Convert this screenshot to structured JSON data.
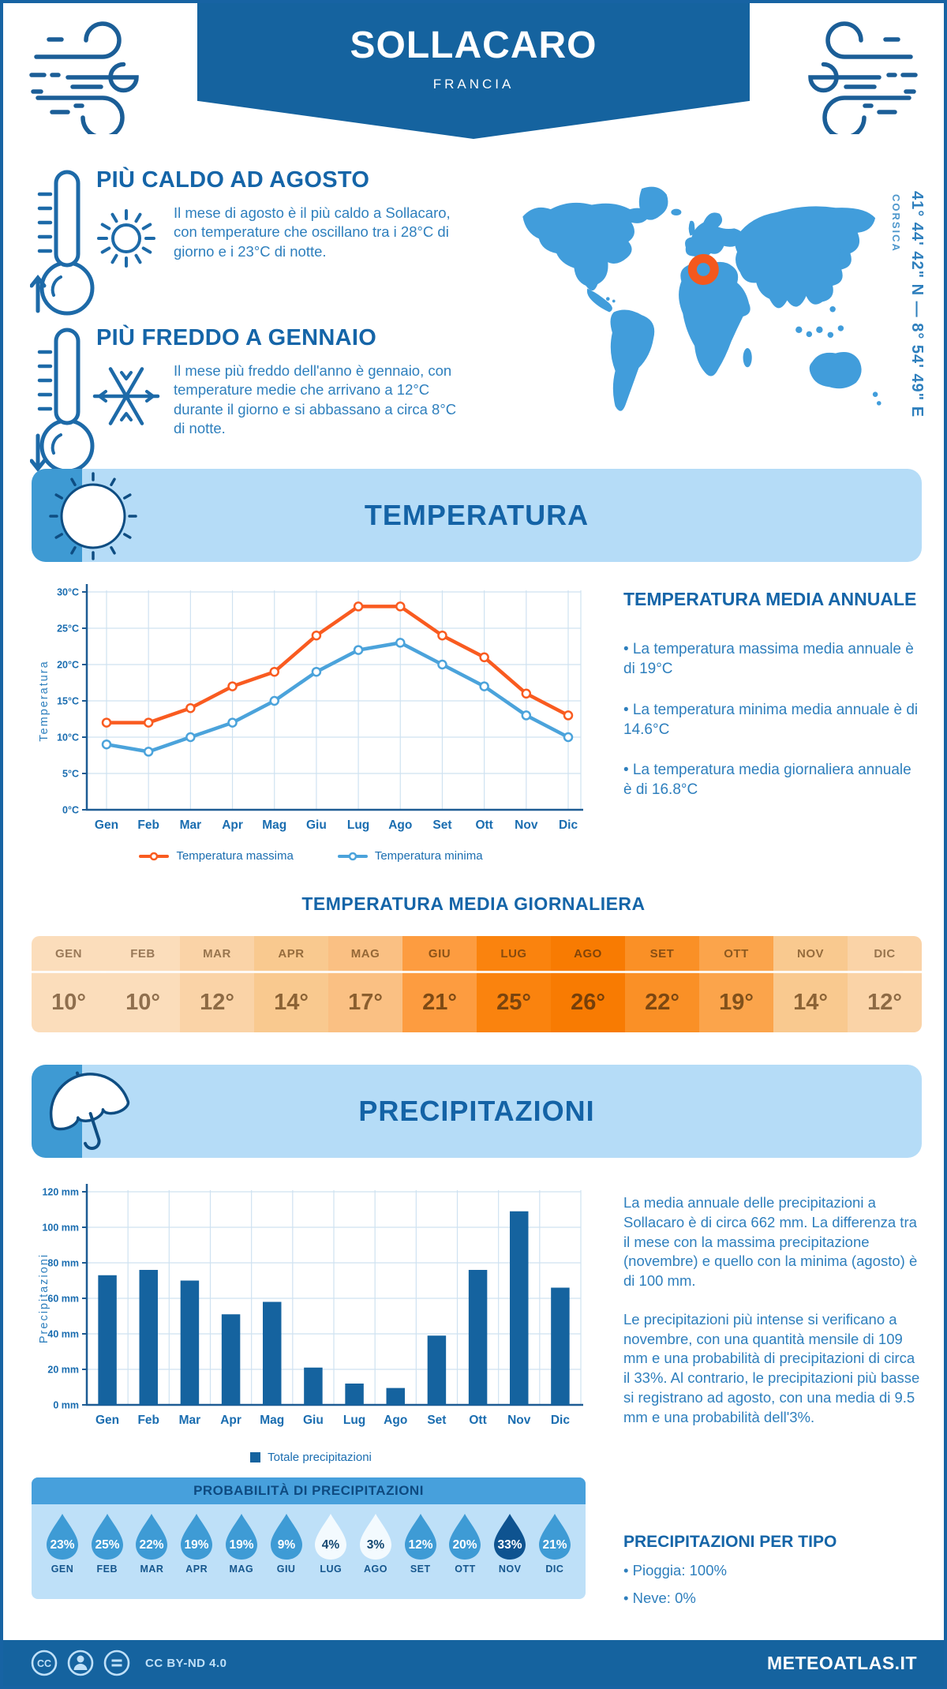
{
  "header": {
    "title": "SOLLACARO",
    "subtitle": "FRANCIA"
  },
  "theme": {
    "brand_blue": "#15639F",
    "light_blue_banner": "#B5DCF7",
    "tab_blue": "#3E9AD3",
    "heading_blue": "#1565A8",
    "body_blue": "#2E7FBD",
    "map_land_blue": "#419DDB",
    "marker_orange": "#F4581D",
    "grid_blue": "#CFE2F1",
    "axis_blue": "#1E5C94"
  },
  "icons": {
    "header_decoration": "wind-icon",
    "hot_block": [
      "thermometer-up-icon",
      "sun-icon"
    ],
    "cold_block": [
      "thermometer-down-icon",
      "snowflake-icon"
    ],
    "temperature_section": "sun-icon",
    "precipitation_section": "umbrella-icon",
    "probability": "raindrop-icon",
    "map_marker": "location-ring-icon",
    "license": [
      "cc-icon",
      "person-icon",
      "nd-equals-icon"
    ]
  },
  "highlights": [
    {
      "title": "PIÙ CALDO AD AGOSTO",
      "text": "Il mese di agosto è il più caldo a Sollacaro, con temperature che oscillano tra i 28°C di giorno e i 23°C di notte."
    },
    {
      "title": "PIÙ FREDDO A GENNAIO",
      "text": "Il mese più freddo dell'anno è gennaio, con temperature medie che arrivano a 12°C durante il giorno e si abbassano a circa 8°C di notte."
    }
  ],
  "map": {
    "region": "CORSICA",
    "coordinates": "41° 44' 42\" N — 8° 54' 49\" E"
  },
  "sections": {
    "temperature_title": "TEMPERATURA",
    "precipitation_title": "PRECIPITAZIONI"
  },
  "chart_data": [
    {
      "type": "line",
      "title": "Temperatura",
      "categories": [
        "Gen",
        "Feb",
        "Mar",
        "Apr",
        "Mag",
        "Giu",
        "Lug",
        "Ago",
        "Set",
        "Ott",
        "Nov",
        "Dic"
      ],
      "series": [
        {
          "name": "Temperatura massima",
          "color": "#F95B20",
          "values": [
            12,
            12,
            14,
            17,
            19,
            24,
            28,
            28,
            24,
            21,
            16,
            13
          ]
        },
        {
          "name": "Temperatura minima",
          "color": "#4BA3DB",
          "values": [
            9,
            8,
            10,
            12,
            15,
            19,
            22,
            23,
            20,
            17,
            13,
            10
          ]
        }
      ],
      "xlabel": "",
      "ylabel": "Temperatura",
      "ylim": [
        0,
        30
      ],
      "ytick_step": 5,
      "ytick_suffix": "°C",
      "grid": true,
      "legend_position": "bottom"
    },
    {
      "type": "bar",
      "title": "Precipitazioni",
      "categories": [
        "Gen",
        "Feb",
        "Mar",
        "Apr",
        "Mag",
        "Giu",
        "Lug",
        "Ago",
        "Set",
        "Ott",
        "Nov",
        "Dic"
      ],
      "series": [
        {
          "name": "Totale precipitazioni",
          "color": "#15639F",
          "values": [
            73,
            76,
            70,
            51,
            58,
            21,
            12,
            9.5,
            39,
            76,
            109,
            66
          ]
        }
      ],
      "xlabel": "",
      "ylabel": "Precipitazioni",
      "ylim": [
        0,
        120
      ],
      "ytick_step": 20,
      "ytick_suffix": " mm",
      "grid": true,
      "legend_position": "bottom"
    }
  ],
  "annual_summary": {
    "title": "TEMPERATURA MEDIA ANNUALE",
    "items": [
      "• La temperatura massima media annuale è di 19°C",
      "• La temperatura minima media annuale è di 14.6°C",
      "• La temperatura media giornaliera annuale è di 16.8°C"
    ]
  },
  "daily_table": {
    "title": "TEMPERATURA MEDIA GIORNALIERA",
    "cells": [
      {
        "month": "GEN",
        "value": "10°",
        "bg": "#FBDDBB",
        "fg": "#8F6F4E"
      },
      {
        "month": "FEB",
        "value": "10°",
        "bg": "#FBDDBB",
        "fg": "#8F6F4E"
      },
      {
        "month": "MAR",
        "value": "12°",
        "bg": "#FAD3A7",
        "fg": "#8D6A44"
      },
      {
        "month": "APR",
        "value": "14°",
        "bg": "#F9C98F",
        "fg": "#8C6335"
      },
      {
        "month": "MAG",
        "value": "17°",
        "bg": "#FAC083",
        "fg": "#8A5E2E"
      },
      {
        "month": "GIU",
        "value": "21°",
        "bg": "#FD9C40",
        "fg": "#7E4A14"
      },
      {
        "month": "LUG",
        "value": "25°",
        "bg": "#FA830E",
        "fg": "#7A440E"
      },
      {
        "month": "AGO",
        "value": "26°",
        "bg": "#F87B02",
        "fg": "#753F0A"
      },
      {
        "month": "SET",
        "value": "22°",
        "bg": "#FA9026",
        "fg": "#7C4711"
      },
      {
        "month": "OTT",
        "value": "19°",
        "bg": "#FBA44B",
        "fg": "#81511B"
      },
      {
        "month": "NOV",
        "value": "14°",
        "bg": "#F9C98F",
        "fg": "#8C6335"
      },
      {
        "month": "DIC",
        "value": "12°",
        "bg": "#FAD3A7",
        "fg": "#8D6A44"
      }
    ]
  },
  "precip_text": {
    "para1": "La media annuale delle precipitazioni a Sollacaro è di circa 662 mm. La differenza tra il mese con la massima precipitazione (novembre) e quello con la minima (agosto) è di 100 mm.",
    "para2": "Le precipitazioni più intense si verificano a novembre, con una quantità mensile di 109 mm e una probabilità di precipitazioni di circa il 33%. Al contrario, le precipitazioni più basse si registrano ad agosto, con una media di 9.5 mm e una probabilità dell'3%."
  },
  "probability": {
    "title": "PROBABILITÀ DI PRECIPITAZIONI",
    "items": [
      {
        "month": "GEN",
        "value": "23%",
        "bg": "#3E9BD5",
        "fg": "#FFFFFF"
      },
      {
        "month": "FEB",
        "value": "25%",
        "bg": "#3E9BD5",
        "fg": "#FFFFFF"
      },
      {
        "month": "MAR",
        "value": "22%",
        "bg": "#3E9BD5",
        "fg": "#FFFFFF"
      },
      {
        "month": "APR",
        "value": "19%",
        "bg": "#3E9BD5",
        "fg": "#FFFFFF"
      },
      {
        "month": "MAG",
        "value": "19%",
        "bg": "#3E9BD5",
        "fg": "#FFFFFF"
      },
      {
        "month": "GIU",
        "value": "9%",
        "bg": "#3E9BD5",
        "fg": "#FFFFFF"
      },
      {
        "month": "LUG",
        "value": "4%",
        "bg": "#F3FAFE",
        "fg": "#134770"
      },
      {
        "month": "AGO",
        "value": "3%",
        "bg": "#F3FAFE",
        "fg": "#134770"
      },
      {
        "month": "SET",
        "value": "12%",
        "bg": "#3E9BD5",
        "fg": "#FFFFFF"
      },
      {
        "month": "OTT",
        "value": "20%",
        "bg": "#3E9BD5",
        "fg": "#FFFFFF"
      },
      {
        "month": "NOV",
        "value": "33%",
        "bg": "#0E5390",
        "fg": "#FFFFFF"
      },
      {
        "month": "DIC",
        "value": "21%",
        "bg": "#3E9BD5",
        "fg": "#FFFFFF"
      }
    ]
  },
  "precip_by_type": {
    "title": "PRECIPITAZIONI PER TIPO",
    "items": [
      "• Pioggia: 100%",
      "• Neve: 0%"
    ]
  },
  "footer": {
    "cc_glyph": "CC",
    "license": "CC BY-ND 4.0",
    "brand": "METEOATLAS.IT"
  }
}
